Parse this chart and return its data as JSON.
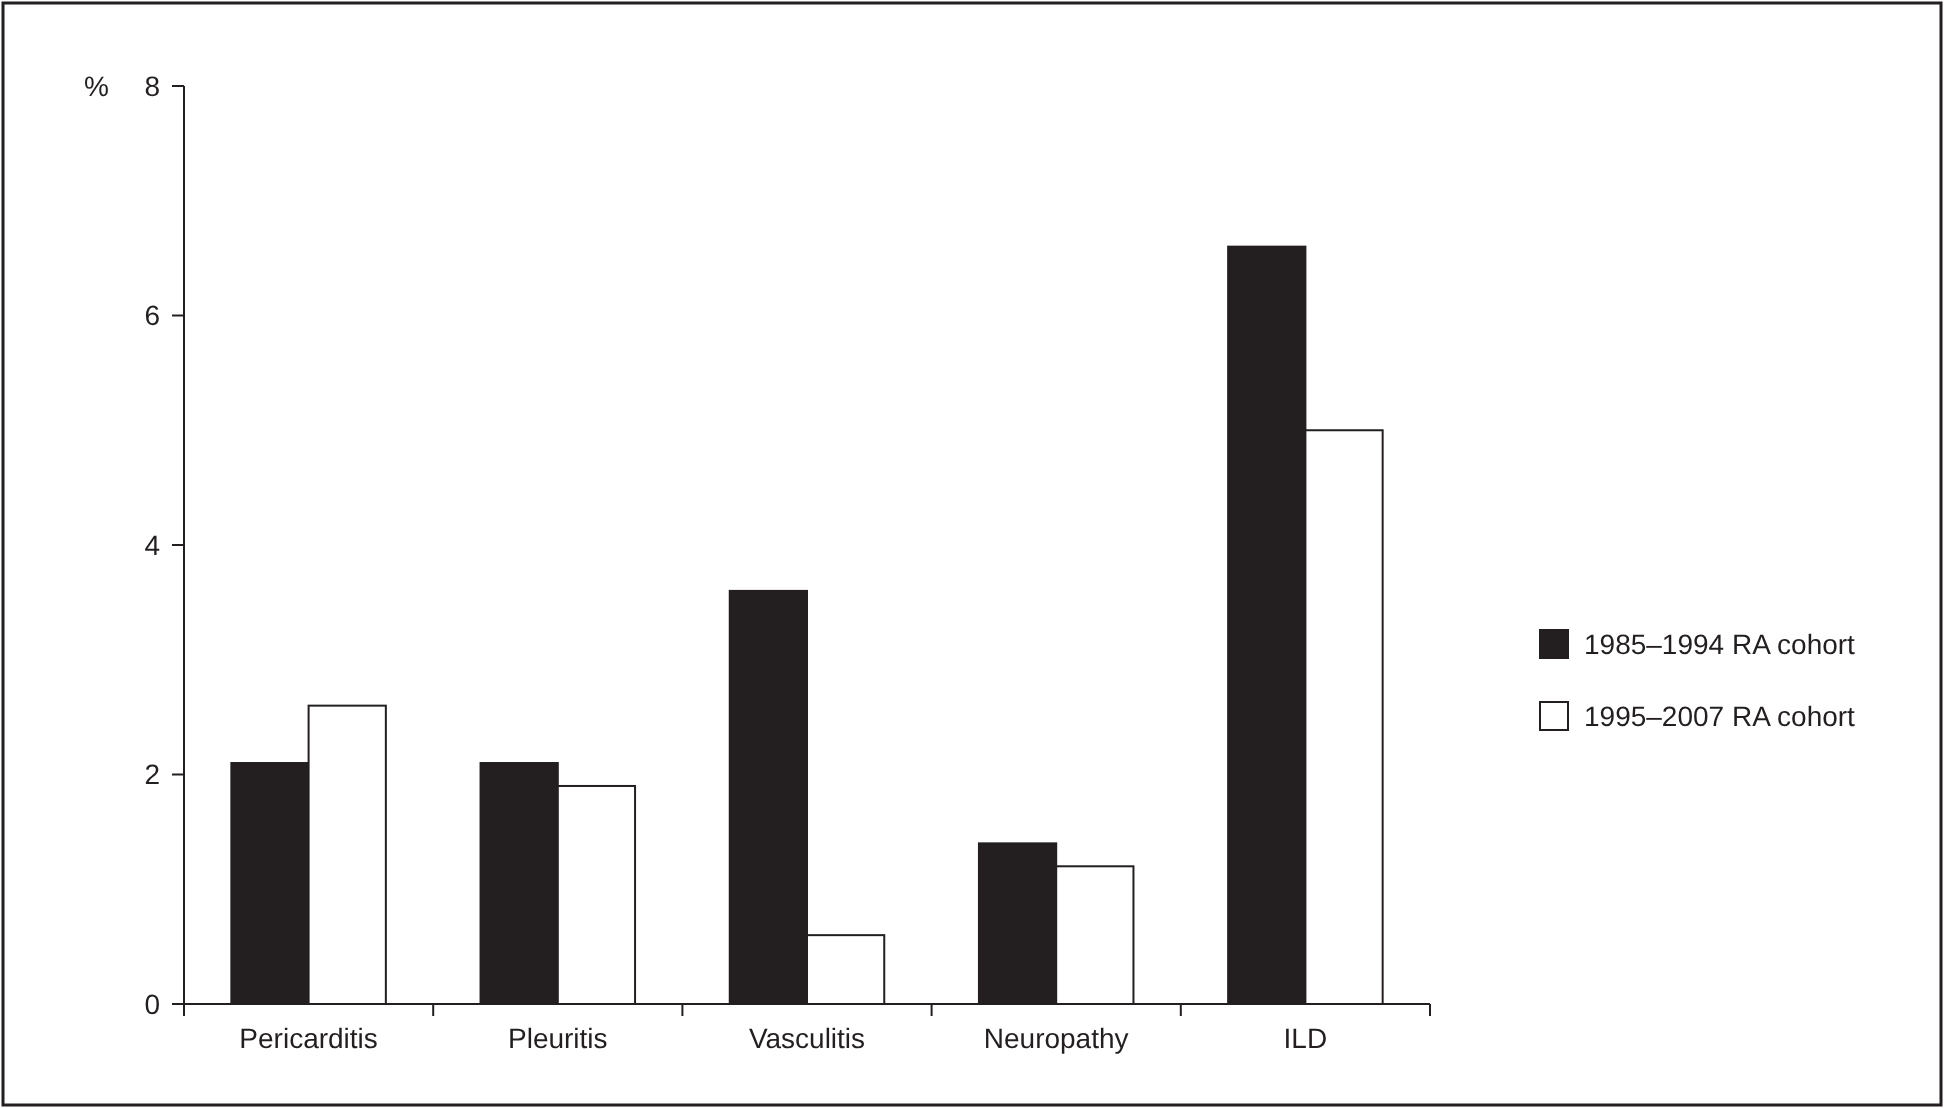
{
  "chart_data": {
    "type": "bar",
    "ylabel": "%",
    "categories": [
      "Pericarditis",
      "Pleuritis",
      "Vasculitis",
      "Neuropathy",
      "ILD"
    ],
    "series": [
      {
        "name": "1985–1994 RA cohort",
        "color": "#231f20",
        "values": [
          2.1,
          2.1,
          3.6,
          1.4,
          6.6
        ]
      },
      {
        "name": "1995–2007 RA cohort",
        "color": "#ffffff",
        "values": [
          2.6,
          1.9,
          0.6,
          1.2,
          5.0
        ]
      }
    ],
    "ylim": [
      0,
      8
    ],
    "yticks": [
      0,
      2,
      4,
      6,
      8
    ],
    "grid": false,
    "legend": "right"
  }
}
